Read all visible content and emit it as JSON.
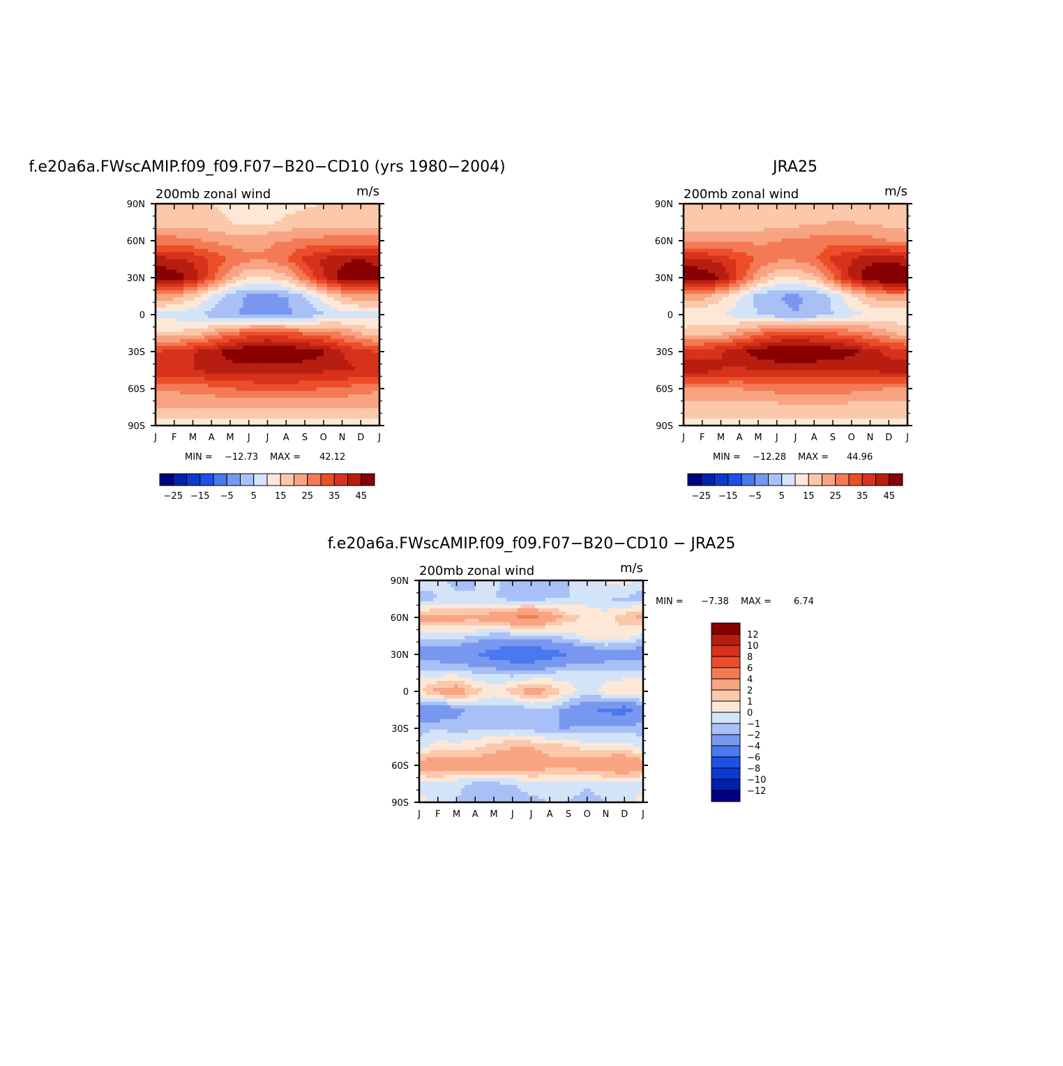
{
  "figure": {
    "panels": [
      {
        "key": "model",
        "title": "f.e20a6a.FWscAMIP.f09_f09.F07−B20−CD10 (yrs 1980−2004)",
        "left_label": "200mb zonal wind",
        "right_label": "m/s",
        "min_label": "MIN =",
        "min_value": "−12.73",
        "max_label": "MAX =",
        "max_value": "42.12"
      },
      {
        "key": "obs",
        "title": "JRA25",
        "left_label": "200mb zonal wind",
        "right_label": "m/s",
        "min_label": "MIN =",
        "min_value": "−12.28",
        "max_label": "MAX =",
        "max_value": "44.96"
      },
      {
        "key": "diff",
        "title": "f.e20a6a.FWscAMIP.f09_f09.F07−B20−CD10 − JRA25",
        "left_label": "200mb zonal wind",
        "right_label": "m/s",
        "min_label": "MIN =",
        "min_value": "−7.38",
        "max_label": "MAX =",
        "max_value": "6.74"
      }
    ],
    "x_tick_labels": [
      "J",
      "F",
      "M",
      "A",
      "M",
      "J",
      "J",
      "A",
      "S",
      "O",
      "N",
      "D",
      "J"
    ],
    "y_tick_labels": [
      "90N",
      "60N",
      "30N",
      "0",
      "30S",
      "60S",
      "90S"
    ],
    "colorbar_abs": {
      "colors": [
        "#000080",
        "#0022aa",
        "#0a3ad2",
        "#1e50e8",
        "#4a78ee",
        "#7898f0",
        "#a8c0f5",
        "#d4e4f8",
        "#fde8d8",
        "#fbc8ac",
        "#f8a482",
        "#f47a55",
        "#ec4e2a",
        "#d8321c",
        "#b81e10",
        "#880000"
      ],
      "labels": [
        "−25",
        "−15",
        "−5",
        "5",
        "15",
        "25",
        "35",
        "45"
      ]
    },
    "colorbar_diff": {
      "colors": [
        "#880000",
        "#b81e10",
        "#d8321c",
        "#ec4e2a",
        "#f47a55",
        "#f8a482",
        "#fbc8ac",
        "#fde8d8",
        "#d4e4f8",
        "#a8c0f5",
        "#7898f0",
        "#4a78ee",
        "#1e50e8",
        "#0a3ad2",
        "#0022aa",
        "#000080"
      ],
      "labels": [
        "12",
        "10",
        "8",
        "6",
        "4",
        "2",
        "1",
        "0",
        "−1",
        "−2",
        "−4",
        "−6",
        "−8",
        "−10",
        "−12"
      ]
    }
  },
  "chart_data": [
    {
      "type": "heatmap",
      "title": "f.e20a6a.FWscAMIP.f09_f09.F07−B20−CD10 (yrs 1980−2004)",
      "variable": "200mb zonal wind",
      "units": "m/s",
      "x": [
        "J",
        "F",
        "M",
        "A",
        "M",
        "J",
        "J",
        "A",
        "S",
        "O",
        "N",
        "D",
        "J"
      ],
      "y": [
        90,
        75,
        60,
        45,
        30,
        15,
        0,
        -15,
        -30,
        -45,
        -60,
        -75,
        -90
      ],
      "z": [
        [
          5,
          5,
          5,
          5,
          4,
          3,
          3,
          3,
          4,
          5,
          5,
          5,
          5
        ],
        [
          8,
          8,
          8,
          7,
          5,
          3,
          4,
          6,
          7,
          8,
          8,
          8,
          8
        ],
        [
          17,
          17,
          16,
          14,
          13,
          13,
          14,
          15,
          16,
          17,
          17,
          17,
          17
        ],
        [
          32,
          31,
          29,
          24,
          19,
          16,
          16,
          20,
          27,
          31,
          34,
          35,
          32
        ],
        [
          40,
          38,
          33,
          22,
          11,
          5,
          5,
          8,
          18,
          30,
          37,
          41,
          40
        ],
        [
          14,
          12,
          7,
          -1,
          -8,
          -11,
          -11,
          -10,
          -5,
          3,
          10,
          14,
          14
        ],
        [
          -2,
          -2,
          -4,
          -7,
          -9,
          -11,
          -12,
          -11,
          -9,
          -6,
          -3,
          -2,
          -2
        ],
        [
          6,
          6,
          7,
          12,
          18,
          21,
          23,
          21,
          19,
          18,
          14,
          10,
          6
        ],
        [
          25,
          27,
          30,
          33,
          37,
          40,
          41,
          40,
          38,
          36,
          30,
          27,
          25
        ],
        [
          30,
          30,
          30,
          32,
          33,
          32,
          32,
          32,
          32,
          31,
          31,
          30,
          30
        ],
        [
          16,
          16,
          17,
          18,
          20,
          21,
          22,
          22,
          21,
          20,
          19,
          17,
          16
        ],
        [
          10,
          10,
          10,
          10,
          10,
          10,
          10,
          10,
          10,
          10,
          10,
          10,
          10
        ],
        [
          3,
          3,
          3,
          3,
          3,
          3,
          3,
          3,
          3,
          3,
          3,
          3,
          3
        ]
      ],
      "xlim": [
        "J",
        "J"
      ],
      "ylim": [
        -90,
        90
      ],
      "levels": [
        -35,
        -30,
        -25,
        -20,
        -15,
        -10,
        -5,
        0,
        5,
        10,
        15,
        20,
        25,
        30,
        35,
        40,
        45
      ]
    },
    {
      "type": "heatmap",
      "title": "JRA25",
      "variable": "200mb zonal wind",
      "units": "m/s",
      "x": [
        "J",
        "F",
        "M",
        "A",
        "M",
        "J",
        "J",
        "A",
        "S",
        "O",
        "N",
        "D",
        "J"
      ],
      "y": [
        90,
        75,
        60,
        45,
        30,
        15,
        0,
        -15,
        -30,
        -45,
        -60,
        -75,
        -90
      ],
      "z": [
        [
          6,
          6,
          6,
          6,
          5,
          5,
          5,
          5,
          5,
          6,
          6,
          6,
          6
        ],
        [
          7,
          7,
          7,
          7,
          7,
          7,
          8,
          9,
          10,
          10,
          9,
          8,
          7
        ],
        [
          14,
          14,
          14,
          14,
          14,
          15,
          16,
          17,
          18,
          18,
          17,
          15,
          14
        ],
        [
          31,
          30,
          28,
          24,
          19,
          16,
          16,
          19,
          26,
          30,
          33,
          34,
          31
        ],
        [
          41,
          40,
          35,
          24,
          12,
          5,
          5,
          8,
          19,
          32,
          39,
          43,
          41
        ],
        [
          14,
          12,
          7,
          0,
          -7,
          -10,
          -11,
          -9,
          -4,
          4,
          11,
          14,
          14
        ],
        [
          1,
          1,
          0,
          -2,
          -5,
          -8,
          -10,
          -8,
          -5,
          -2,
          0,
          1,
          1
        ],
        [
          7,
          8,
          9,
          13,
          18,
          22,
          24,
          22,
          20,
          18,
          15,
          11,
          7
        ],
        [
          28,
          28,
          30,
          34,
          38,
          41,
          42,
          41,
          39,
          37,
          32,
          29,
          28
        ],
        [
          33,
          32,
          30,
          29,
          30,
          30,
          30,
          30,
          30,
          30,
          31,
          32,
          33
        ],
        [
          15,
          15,
          15,
          15,
          16,
          17,
          18,
          18,
          18,
          17,
          16,
          15,
          15
        ],
        [
          8,
          8,
          8,
          8,
          8,
          8,
          8,
          8,
          8,
          8,
          8,
          8,
          8
        ],
        [
          3,
          3,
          3,
          3,
          3,
          3,
          3,
          3,
          3,
          3,
          3,
          3,
          3
        ]
      ],
      "xlim": [
        "J",
        "J"
      ],
      "ylim": [
        -90,
        90
      ],
      "levels": [
        -35,
        -30,
        -25,
        -20,
        -15,
        -10,
        -5,
        0,
        5,
        10,
        15,
        20,
        25,
        30,
        35,
        40,
        45
      ]
    },
    {
      "type": "heatmap",
      "title": "f.e20a6a.FWscAMIP.f09_f09.F07−B20−CD10 − JRA25",
      "variable": "200mb zonal wind",
      "units": "m/s",
      "x": [
        "J",
        "F",
        "M",
        "A",
        "M",
        "J",
        "J",
        "A",
        "S",
        "O",
        "N",
        "D",
        "J"
      ],
      "y": [
        90,
        75,
        60,
        45,
        30,
        15,
        0,
        -15,
        -30,
        -45,
        -60,
        -75,
        -90
      ],
      "z": [
        [
          -0.5,
          -0.8,
          -1.2,
          -1.0,
          -0.8,
          -1.5,
          -1.8,
          -1.2,
          -1.0,
          -0.5,
          0.2,
          0.5,
          -0.5
        ],
        [
          -1.5,
          -1.0,
          -0.8,
          -1.0,
          -1.0,
          -1.2,
          -1.5,
          -1.0,
          -1.0,
          -0.5,
          -1.0,
          -1.2,
          -1.5
        ],
        [
          2.5,
          2.5,
          2.5,
          2.5,
          3.0,
          4.0,
          5.0,
          3.0,
          1.5,
          0.8,
          0.5,
          1.5,
          2.5
        ],
        [
          -0.5,
          -0.5,
          -0.5,
          -1.0,
          -1.5,
          -1.5,
          -1.5,
          -1.0,
          -0.5,
          0.5,
          0.8,
          0.5,
          -0.5
        ],
        [
          -3.0,
          -3.0,
          -3.5,
          -4.0,
          -5.0,
          -6.0,
          -6.0,
          -5.0,
          -4.0,
          -3.5,
          -3.0,
          -3.0,
          -3.0
        ],
        [
          -0.5,
          -0.5,
          -0.5,
          -1.0,
          -1.0,
          -1.5,
          -1.5,
          -1.0,
          -0.5,
          -0.5,
          -0.5,
          -0.5,
          -0.5
        ],
        [
          1.0,
          2.5,
          3.0,
          1.5,
          0.5,
          1.5,
          3.0,
          2.0,
          0.5,
          -0.5,
          0.5,
          1.0,
          1.0
        ],
        [
          -3.0,
          -3.5,
          -2.5,
          -1.5,
          -1.5,
          -2.0,
          -1.5,
          -1.5,
          -2.5,
          -3.5,
          -4.5,
          -5.0,
          -3.0
        ],
        [
          -1.5,
          -1.0,
          -1.5,
          -1.2,
          -1.0,
          -1.0,
          -1.5,
          -2.0,
          -2.0,
          -1.8,
          -1.5,
          -1.5,
          -1.5
        ],
        [
          -0.5,
          0.5,
          0.5,
          0.8,
          1.5,
          2.0,
          2.0,
          1.5,
          1.2,
          0.5,
          0.5,
          0.5,
          -0.5
        ],
        [
          3.0,
          3.5,
          3.0,
          3.0,
          3.0,
          3.0,
          3.0,
          2.5,
          2.5,
          3.0,
          3.5,
          4.0,
          3.0
        ],
        [
          -0.5,
          -0.5,
          -0.8,
          -1.2,
          -1.2,
          -1.0,
          -0.3,
          -0.2,
          -0.5,
          -0.8,
          -0.5,
          -0.5,
          -0.5
        ],
        [
          0.5,
          -0.5,
          -1.0,
          -1.5,
          -1.8,
          -1.8,
          -1.5,
          -1.0,
          -1.0,
          -1.5,
          -1.0,
          -0.5,
          0.5
        ]
      ],
      "xlim": [
        "J",
        "J"
      ],
      "ylim": [
        -90,
        90
      ],
      "levels": [
        -12,
        -10,
        -8,
        -6,
        -4,
        -2,
        -1,
        0,
        1,
        2,
        4,
        6,
        8,
        10,
        12
      ]
    }
  ]
}
